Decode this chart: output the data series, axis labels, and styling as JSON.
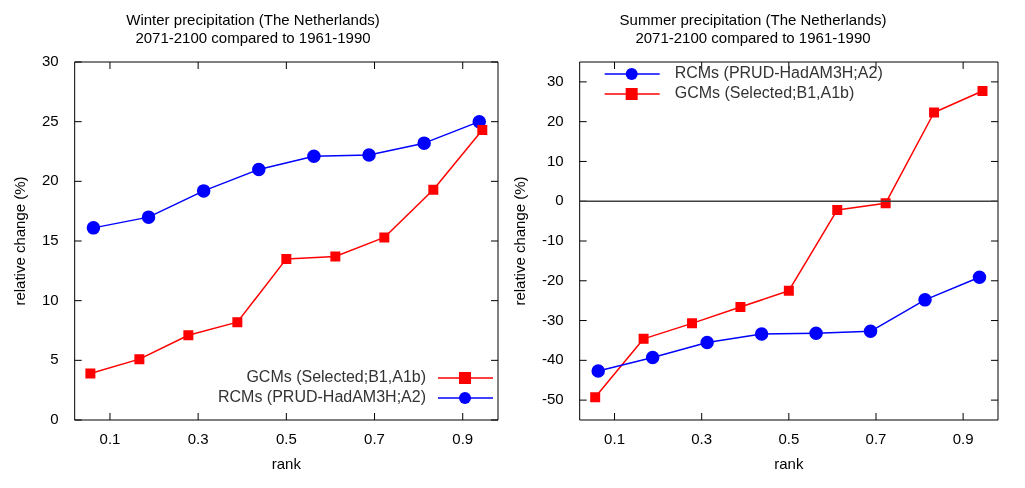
{
  "chart_data": [
    {
      "type": "line",
      "title": "Winter precipitation (The Netherlands)\n2071-2100 compared to 1961-1990",
      "xlabel": "rank",
      "ylabel": "relative change (%)",
      "xlim": [
        0.02,
        0.98
      ],
      "xticks": [
        0.1,
        0.3,
        0.5,
        0.7,
        0.9
      ],
      "ylim": [
        0,
        30
      ],
      "yticks": [
        0,
        5,
        10,
        15,
        20,
        25,
        30
      ],
      "legend": "bottom right",
      "series": [
        {
          "name": "GCMs (Selected;B1,A1b)",
          "color": "#ff0000",
          "marker": "square",
          "x": [
            0.0556,
            0.1667,
            0.2778,
            0.3889,
            0.5,
            0.6111,
            0.7222,
            0.8333,
            0.9444
          ],
          "values": [
            3.9,
            5.1,
            7.1,
            8.2,
            13.5,
            13.7,
            15.3,
            19.3,
            24.3
          ]
        },
        {
          "name": "RCMs (PRUD-HadAM3H;A2)",
          "color": "#0000ff",
          "marker": "circle",
          "x": [
            0.0625,
            0.1875,
            0.3125,
            0.4375,
            0.5625,
            0.6875,
            0.8125,
            0.9375
          ],
          "values": [
            16.1,
            17.0,
            19.2,
            21.0,
            22.1,
            22.2,
            23.2,
            25.0
          ]
        }
      ]
    },
    {
      "type": "line",
      "title": "Summer precipitation (The Netherlands)\n2071-2100 compared to 1961-1990",
      "xlabel": "rank",
      "ylabel": "relative change (%)",
      "xlim": [
        0.02,
        0.98
      ],
      "xticks": [
        0.1,
        0.3,
        0.5,
        0.7,
        0.9
      ],
      "ylim": [
        -55,
        35
      ],
      "yticks": [
        -50,
        -40,
        -30,
        -20,
        -10,
        0,
        10,
        20,
        30
      ],
      "legend": "top left",
      "ref_lines": [
        {
          "axis": "y",
          "value": 0,
          "color": "#404040"
        }
      ],
      "series": [
        {
          "name": "RCMs (PRUD-HadAM3H;A2)",
          "color": "#0000ff",
          "marker": "circle",
          "x": [
            0.0625,
            0.1875,
            0.3125,
            0.4375,
            0.5625,
            0.6875,
            0.8125,
            0.9375
          ],
          "values": [
            -42.7,
            -39.3,
            -35.5,
            -33.4,
            -33.2,
            -32.7,
            -24.8,
            -19.1
          ]
        },
        {
          "name": "GCMs (Selected;B1,A1b)",
          "color": "#ff0000",
          "marker": "square",
          "x": [
            0.0556,
            0.1667,
            0.2778,
            0.3889,
            0.5,
            0.6111,
            0.7222,
            0.8333,
            0.9444
          ],
          "values": [
            -49.3,
            -34.6,
            -30.7,
            -26.6,
            -22.5,
            -2.2,
            -0.5,
            22.3,
            27.7
          ]
        }
      ]
    }
  ]
}
